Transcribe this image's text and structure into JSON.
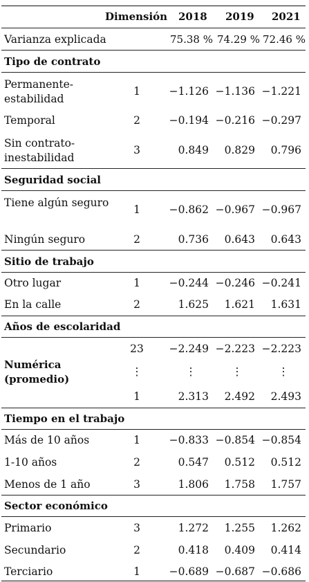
{
  "table": {
    "header": {
      "dimension": "Dimensión",
      "years": [
        "2018",
        "2019",
        "2021"
      ]
    },
    "variance": {
      "label": "Varianza explicada",
      "values": [
        "75.38 %",
        "74.29 %",
        "72.46 %"
      ]
    },
    "sections": [
      {
        "title": "Tipo de contrato",
        "rows": [
          {
            "label": "Permanente-estabilidad",
            "dim": "1",
            "values": [
              "−1.126",
              "−1.136",
              "−1.221"
            ]
          },
          {
            "label": "Temporal",
            "dim": "2",
            "values": [
              "−0.194",
              "−0.216",
              "−0.297"
            ]
          },
          {
            "label": "Sin contrato-inestabilidad",
            "dim": "3",
            "values": [
              "0.849",
              "0.829",
              "0.796"
            ]
          }
        ]
      },
      {
        "title": "Seguridad social",
        "rows": [
          {
            "label": "Tiene algún seguro",
            "dim": "1",
            "values": [
              "−0.862",
              "−0.967",
              "−0.967"
            ]
          },
          {
            "label": "Ningún seguro",
            "dim": "2",
            "values": [
              "0.736",
              "0.643",
              "0.643"
            ]
          }
        ]
      },
      {
        "title": "Sitio de trabajo",
        "rows": [
          {
            "label": "Otro lugar",
            "dim": "1",
            "values": [
              "−0.244",
              "−0.246",
              "−0.241"
            ]
          },
          {
            "label": "En la calle",
            "dim": "2",
            "values": [
              "1.625",
              "1.621",
              "1.631"
            ]
          }
        ]
      },
      {
        "title": "Años de escolaridad",
        "numeric_label": "Numérica (promedio)",
        "rows": [
          {
            "label": "",
            "dim": "23",
            "values": [
              "−2.249",
              "−2.223",
              "−2.223"
            ]
          },
          {
            "label": "",
            "dim": "⋮",
            "values": [
              "⋮",
              "⋮",
              "⋮"
            ]
          },
          {
            "label": "",
            "dim": "1",
            "values": [
              "2.313",
              "2.492",
              "2.493"
            ]
          }
        ]
      },
      {
        "title": "Tiempo en el trabajo",
        "rows": [
          {
            "label": "Más de 10 años",
            "dim": "1",
            "values": [
              "−0.833",
              "−0.854",
              "−0.854"
            ]
          },
          {
            "label": "1-10 años",
            "dim": "2",
            "values": [
              "0.547",
              "0.512",
              "0.512"
            ]
          },
          {
            "label": "Menos de 1 año",
            "dim": "3",
            "values": [
              "1.806",
              "1.758",
              "1.757"
            ]
          }
        ]
      },
      {
        "title": "Sector económico",
        "rows": [
          {
            "label": "Primario",
            "dim": "3",
            "values": [
              "1.272",
              "1.255",
              "1.262"
            ]
          },
          {
            "label": "Secundario",
            "dim": "2",
            "values": [
              "0.418",
              "0.409",
              "0.414"
            ]
          },
          {
            "label": "Terciario",
            "dim": "1",
            "values": [
              "−0.689",
              "−0.687",
              "−0.686"
            ]
          }
        ]
      }
    ]
  }
}
